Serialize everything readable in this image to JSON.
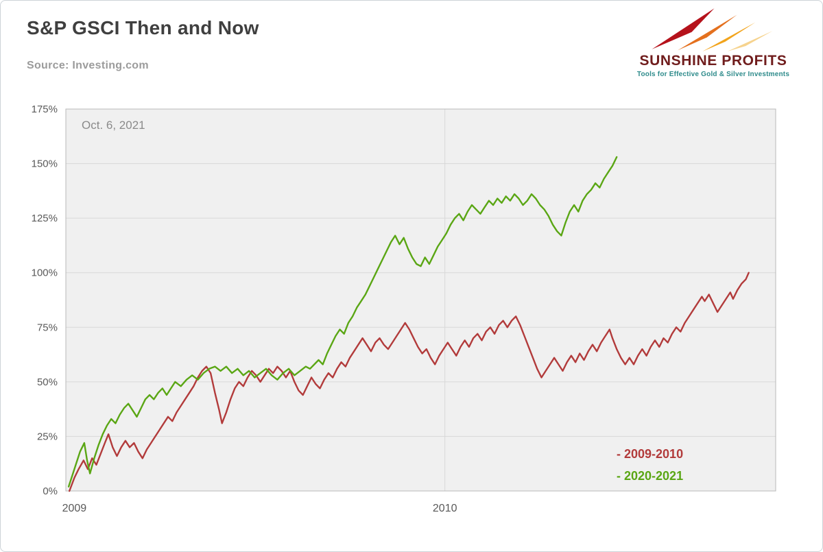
{
  "header": {
    "title": "S&P GSCI Then and Now",
    "source": "Source: Investing.com"
  },
  "logo": {
    "name": "SUNSHINE PROFITS",
    "tagline": "Tools for Effective Gold & Silver Investments",
    "name_color": "#701d1d",
    "tagline_color": "#2e8b8b",
    "ray_colors": [
      "#b5121b",
      "#e4701e",
      "#f2a41c",
      "#f6d38e"
    ]
  },
  "chart_data": {
    "type": "line",
    "title": "S&P GSCI Then and Now",
    "source": "Source: Investing.com",
    "annotation": "Oct. 6, 2021",
    "xlabel": "",
    "ylabel": "",
    "ylim": [
      0,
      175
    ],
    "y_ticks": [
      0,
      25,
      50,
      75,
      100,
      125,
      150,
      175
    ],
    "y_tick_suffix": "%",
    "xlim": [
      0,
      1
    ],
    "x_note": "x is fraction of the horizontal axis; tick marks denote calendar years of the 2009-2010 series",
    "x_ticks": [
      {
        "pos": 0.012,
        "label": "2009",
        "grid": false
      },
      {
        "pos": 0.534,
        "label": "2010",
        "grid": true
      }
    ],
    "grid": {
      "horizontal": true
    },
    "plot_bg": "#f0f0f0",
    "grid_color": "#d8d8d8",
    "border_color": "#b8b8b8",
    "tick_color": "#595959",
    "legend": {
      "position": "bottom-right",
      "entries": [
        {
          "label": "- 2009-2010",
          "color": "#b23b3b"
        },
        {
          "label": "- 2020-2021",
          "color": "#5aa614"
        }
      ]
    },
    "series": [
      {
        "name": "2009-2010",
        "color": "#b23b3b",
        "points": [
          [
            0.005,
            0
          ],
          [
            0.012,
            6
          ],
          [
            0.018,
            10
          ],
          [
            0.025,
            14
          ],
          [
            0.031,
            10
          ],
          [
            0.037,
            15
          ],
          [
            0.043,
            12
          ],
          [
            0.049,
            17
          ],
          [
            0.055,
            22
          ],
          [
            0.06,
            26
          ],
          [
            0.066,
            20
          ],
          [
            0.072,
            16
          ],
          [
            0.078,
            20
          ],
          [
            0.084,
            23
          ],
          [
            0.09,
            20
          ],
          [
            0.096,
            22
          ],
          [
            0.102,
            18
          ],
          [
            0.108,
            15
          ],
          [
            0.114,
            19
          ],
          [
            0.12,
            22
          ],
          [
            0.126,
            25
          ],
          [
            0.132,
            28
          ],
          [
            0.138,
            31
          ],
          [
            0.144,
            34
          ],
          [
            0.15,
            32
          ],
          [
            0.156,
            36
          ],
          [
            0.162,
            39
          ],
          [
            0.168,
            42
          ],
          [
            0.174,
            45
          ],
          [
            0.18,
            48
          ],
          [
            0.186,
            52
          ],
          [
            0.192,
            55
          ],
          [
            0.198,
            57
          ],
          [
            0.204,
            54
          ],
          [
            0.21,
            45
          ],
          [
            0.216,
            37
          ],
          [
            0.22,
            31
          ],
          [
            0.226,
            36
          ],
          [
            0.232,
            42
          ],
          [
            0.238,
            47
          ],
          [
            0.244,
            50
          ],
          [
            0.25,
            48
          ],
          [
            0.256,
            52
          ],
          [
            0.262,
            55
          ],
          [
            0.268,
            53
          ],
          [
            0.274,
            50
          ],
          [
            0.28,
            53
          ],
          [
            0.286,
            56
          ],
          [
            0.292,
            54
          ],
          [
            0.298,
            57
          ],
          [
            0.304,
            55
          ],
          [
            0.31,
            52
          ],
          [
            0.316,
            55
          ],
          [
            0.322,
            50
          ],
          [
            0.328,
            46
          ],
          [
            0.334,
            44
          ],
          [
            0.34,
            48
          ],
          [
            0.346,
            52
          ],
          [
            0.352,
            49
          ],
          [
            0.358,
            47
          ],
          [
            0.364,
            51
          ],
          [
            0.37,
            54
          ],
          [
            0.376,
            52
          ],
          [
            0.382,
            56
          ],
          [
            0.388,
            59
          ],
          [
            0.394,
            57
          ],
          [
            0.4,
            61
          ],
          [
            0.406,
            64
          ],
          [
            0.412,
            67
          ],
          [
            0.418,
            70
          ],
          [
            0.424,
            67
          ],
          [
            0.43,
            64
          ],
          [
            0.436,
            68
          ],
          [
            0.442,
            70
          ],
          [
            0.448,
            67
          ],
          [
            0.454,
            65
          ],
          [
            0.46,
            68
          ],
          [
            0.466,
            71
          ],
          [
            0.472,
            74
          ],
          [
            0.478,
            77
          ],
          [
            0.484,
            74
          ],
          [
            0.49,
            70
          ],
          [
            0.496,
            66
          ],
          [
            0.502,
            63
          ],
          [
            0.508,
            65
          ],
          [
            0.514,
            61
          ],
          [
            0.52,
            58
          ],
          [
            0.526,
            62
          ],
          [
            0.532,
            65
          ],
          [
            0.538,
            68
          ],
          [
            0.544,
            65
          ],
          [
            0.55,
            62
          ],
          [
            0.556,
            66
          ],
          [
            0.562,
            69
          ],
          [
            0.568,
            66
          ],
          [
            0.574,
            70
          ],
          [
            0.58,
            72
          ],
          [
            0.586,
            69
          ],
          [
            0.592,
            73
          ],
          [
            0.598,
            75
          ],
          [
            0.604,
            72
          ],
          [
            0.61,
            76
          ],
          [
            0.616,
            78
          ],
          [
            0.622,
            75
          ],
          [
            0.628,
            78
          ],
          [
            0.634,
            80
          ],
          [
            0.64,
            76
          ],
          [
            0.646,
            71
          ],
          [
            0.652,
            66
          ],
          [
            0.658,
            61
          ],
          [
            0.664,
            56
          ],
          [
            0.67,
            52
          ],
          [
            0.676,
            55
          ],
          [
            0.682,
            58
          ],
          [
            0.688,
            61
          ],
          [
            0.694,
            58
          ],
          [
            0.7,
            55
          ],
          [
            0.706,
            59
          ],
          [
            0.712,
            62
          ],
          [
            0.718,
            59
          ],
          [
            0.724,
            63
          ],
          [
            0.73,
            60
          ],
          [
            0.736,
            64
          ],
          [
            0.742,
            67
          ],
          [
            0.748,
            64
          ],
          [
            0.754,
            68
          ],
          [
            0.76,
            71
          ],
          [
            0.766,
            74
          ],
          [
            0.77,
            70
          ],
          [
            0.776,
            65
          ],
          [
            0.782,
            61
          ],
          [
            0.788,
            58
          ],
          [
            0.794,
            61
          ],
          [
            0.8,
            58
          ],
          [
            0.806,
            62
          ],
          [
            0.812,
            65
          ],
          [
            0.818,
            62
          ],
          [
            0.824,
            66
          ],
          [
            0.83,
            69
          ],
          [
            0.836,
            66
          ],
          [
            0.842,
            70
          ],
          [
            0.848,
            68
          ],
          [
            0.854,
            72
          ],
          [
            0.86,
            75
          ],
          [
            0.866,
            73
          ],
          [
            0.872,
            77
          ],
          [
            0.878,
            80
          ],
          [
            0.884,
            83
          ],
          [
            0.89,
            86
          ],
          [
            0.896,
            89
          ],
          [
            0.9,
            87
          ],
          [
            0.906,
            90
          ],
          [
            0.912,
            86
          ],
          [
            0.918,
            82
          ],
          [
            0.924,
            85
          ],
          [
            0.93,
            88
          ],
          [
            0.936,
            91
          ],
          [
            0.94,
            88
          ],
          [
            0.946,
            92
          ],
          [
            0.952,
            95
          ],
          [
            0.958,
            97
          ],
          [
            0.962,
            100
          ]
        ]
      },
      {
        "name": "2020-2021",
        "color": "#5aa614",
        "points": [
          [
            0.004,
            2
          ],
          [
            0.008,
            6
          ],
          [
            0.014,
            12
          ],
          [
            0.02,
            18
          ],
          [
            0.026,
            22
          ],
          [
            0.03,
            14
          ],
          [
            0.034,
            8
          ],
          [
            0.04,
            15
          ],
          [
            0.046,
            21
          ],
          [
            0.052,
            26
          ],
          [
            0.058,
            30
          ],
          [
            0.064,
            33
          ],
          [
            0.07,
            31
          ],
          [
            0.076,
            35
          ],
          [
            0.082,
            38
          ],
          [
            0.088,
            40
          ],
          [
            0.094,
            37
          ],
          [
            0.1,
            34
          ],
          [
            0.106,
            38
          ],
          [
            0.112,
            42
          ],
          [
            0.118,
            44
          ],
          [
            0.124,
            42
          ],
          [
            0.13,
            45
          ],
          [
            0.136,
            47
          ],
          [
            0.142,
            44
          ],
          [
            0.148,
            47
          ],
          [
            0.154,
            50
          ],
          [
            0.162,
            48
          ],
          [
            0.17,
            51
          ],
          [
            0.178,
            53
          ],
          [
            0.186,
            51
          ],
          [
            0.194,
            54
          ],
          [
            0.202,
            56
          ],
          [
            0.21,
            57
          ],
          [
            0.218,
            55
          ],
          [
            0.226,
            57
          ],
          [
            0.234,
            54
          ],
          [
            0.242,
            56
          ],
          [
            0.25,
            53
          ],
          [
            0.258,
            55
          ],
          [
            0.266,
            52
          ],
          [
            0.274,
            54
          ],
          [
            0.282,
            56
          ],
          [
            0.29,
            53
          ],
          [
            0.298,
            51
          ],
          [
            0.306,
            54
          ],
          [
            0.314,
            56
          ],
          [
            0.322,
            53
          ],
          [
            0.33,
            55
          ],
          [
            0.338,
            57
          ],
          [
            0.344,
            56
          ],
          [
            0.35,
            58
          ],
          [
            0.356,
            60
          ],
          [
            0.362,
            58
          ],
          [
            0.368,
            63
          ],
          [
            0.374,
            67
          ],
          [
            0.38,
            71
          ],
          [
            0.386,
            74
          ],
          [
            0.392,
            72
          ],
          [
            0.398,
            77
          ],
          [
            0.404,
            80
          ],
          [
            0.41,
            84
          ],
          [
            0.416,
            87
          ],
          [
            0.422,
            90
          ],
          [
            0.428,
            94
          ],
          [
            0.434,
            98
          ],
          [
            0.44,
            102
          ],
          [
            0.446,
            106
          ],
          [
            0.452,
            110
          ],
          [
            0.458,
            114
          ],
          [
            0.464,
            117
          ],
          [
            0.47,
            113
          ],
          [
            0.476,
            116
          ],
          [
            0.482,
            111
          ],
          [
            0.488,
            107
          ],
          [
            0.494,
            104
          ],
          [
            0.5,
            103
          ],
          [
            0.506,
            107
          ],
          [
            0.512,
            104
          ],
          [
            0.518,
            108
          ],
          [
            0.524,
            112
          ],
          [
            0.53,
            115
          ],
          [
            0.536,
            118
          ],
          [
            0.542,
            122
          ],
          [
            0.548,
            125
          ],
          [
            0.554,
            127
          ],
          [
            0.56,
            124
          ],
          [
            0.566,
            128
          ],
          [
            0.572,
            131
          ],
          [
            0.578,
            129
          ],
          [
            0.584,
            127
          ],
          [
            0.59,
            130
          ],
          [
            0.596,
            133
          ],
          [
            0.602,
            131
          ],
          [
            0.608,
            134
          ],
          [
            0.614,
            132
          ],
          [
            0.62,
            135
          ],
          [
            0.626,
            133
          ],
          [
            0.632,
            136
          ],
          [
            0.638,
            134
          ],
          [
            0.644,
            131
          ],
          [
            0.65,
            133
          ],
          [
            0.656,
            136
          ],
          [
            0.662,
            134
          ],
          [
            0.668,
            131
          ],
          [
            0.674,
            129
          ],
          [
            0.68,
            126
          ],
          [
            0.686,
            122
          ],
          [
            0.692,
            119
          ],
          [
            0.698,
            117
          ],
          [
            0.704,
            123
          ],
          [
            0.71,
            128
          ],
          [
            0.716,
            131
          ],
          [
            0.722,
            128
          ],
          [
            0.728,
            133
          ],
          [
            0.734,
            136
          ],
          [
            0.74,
            138
          ],
          [
            0.746,
            141
          ],
          [
            0.752,
            139
          ],
          [
            0.758,
            143
          ],
          [
            0.764,
            146
          ],
          [
            0.77,
            149
          ],
          [
            0.776,
            153
          ]
        ]
      }
    ]
  }
}
